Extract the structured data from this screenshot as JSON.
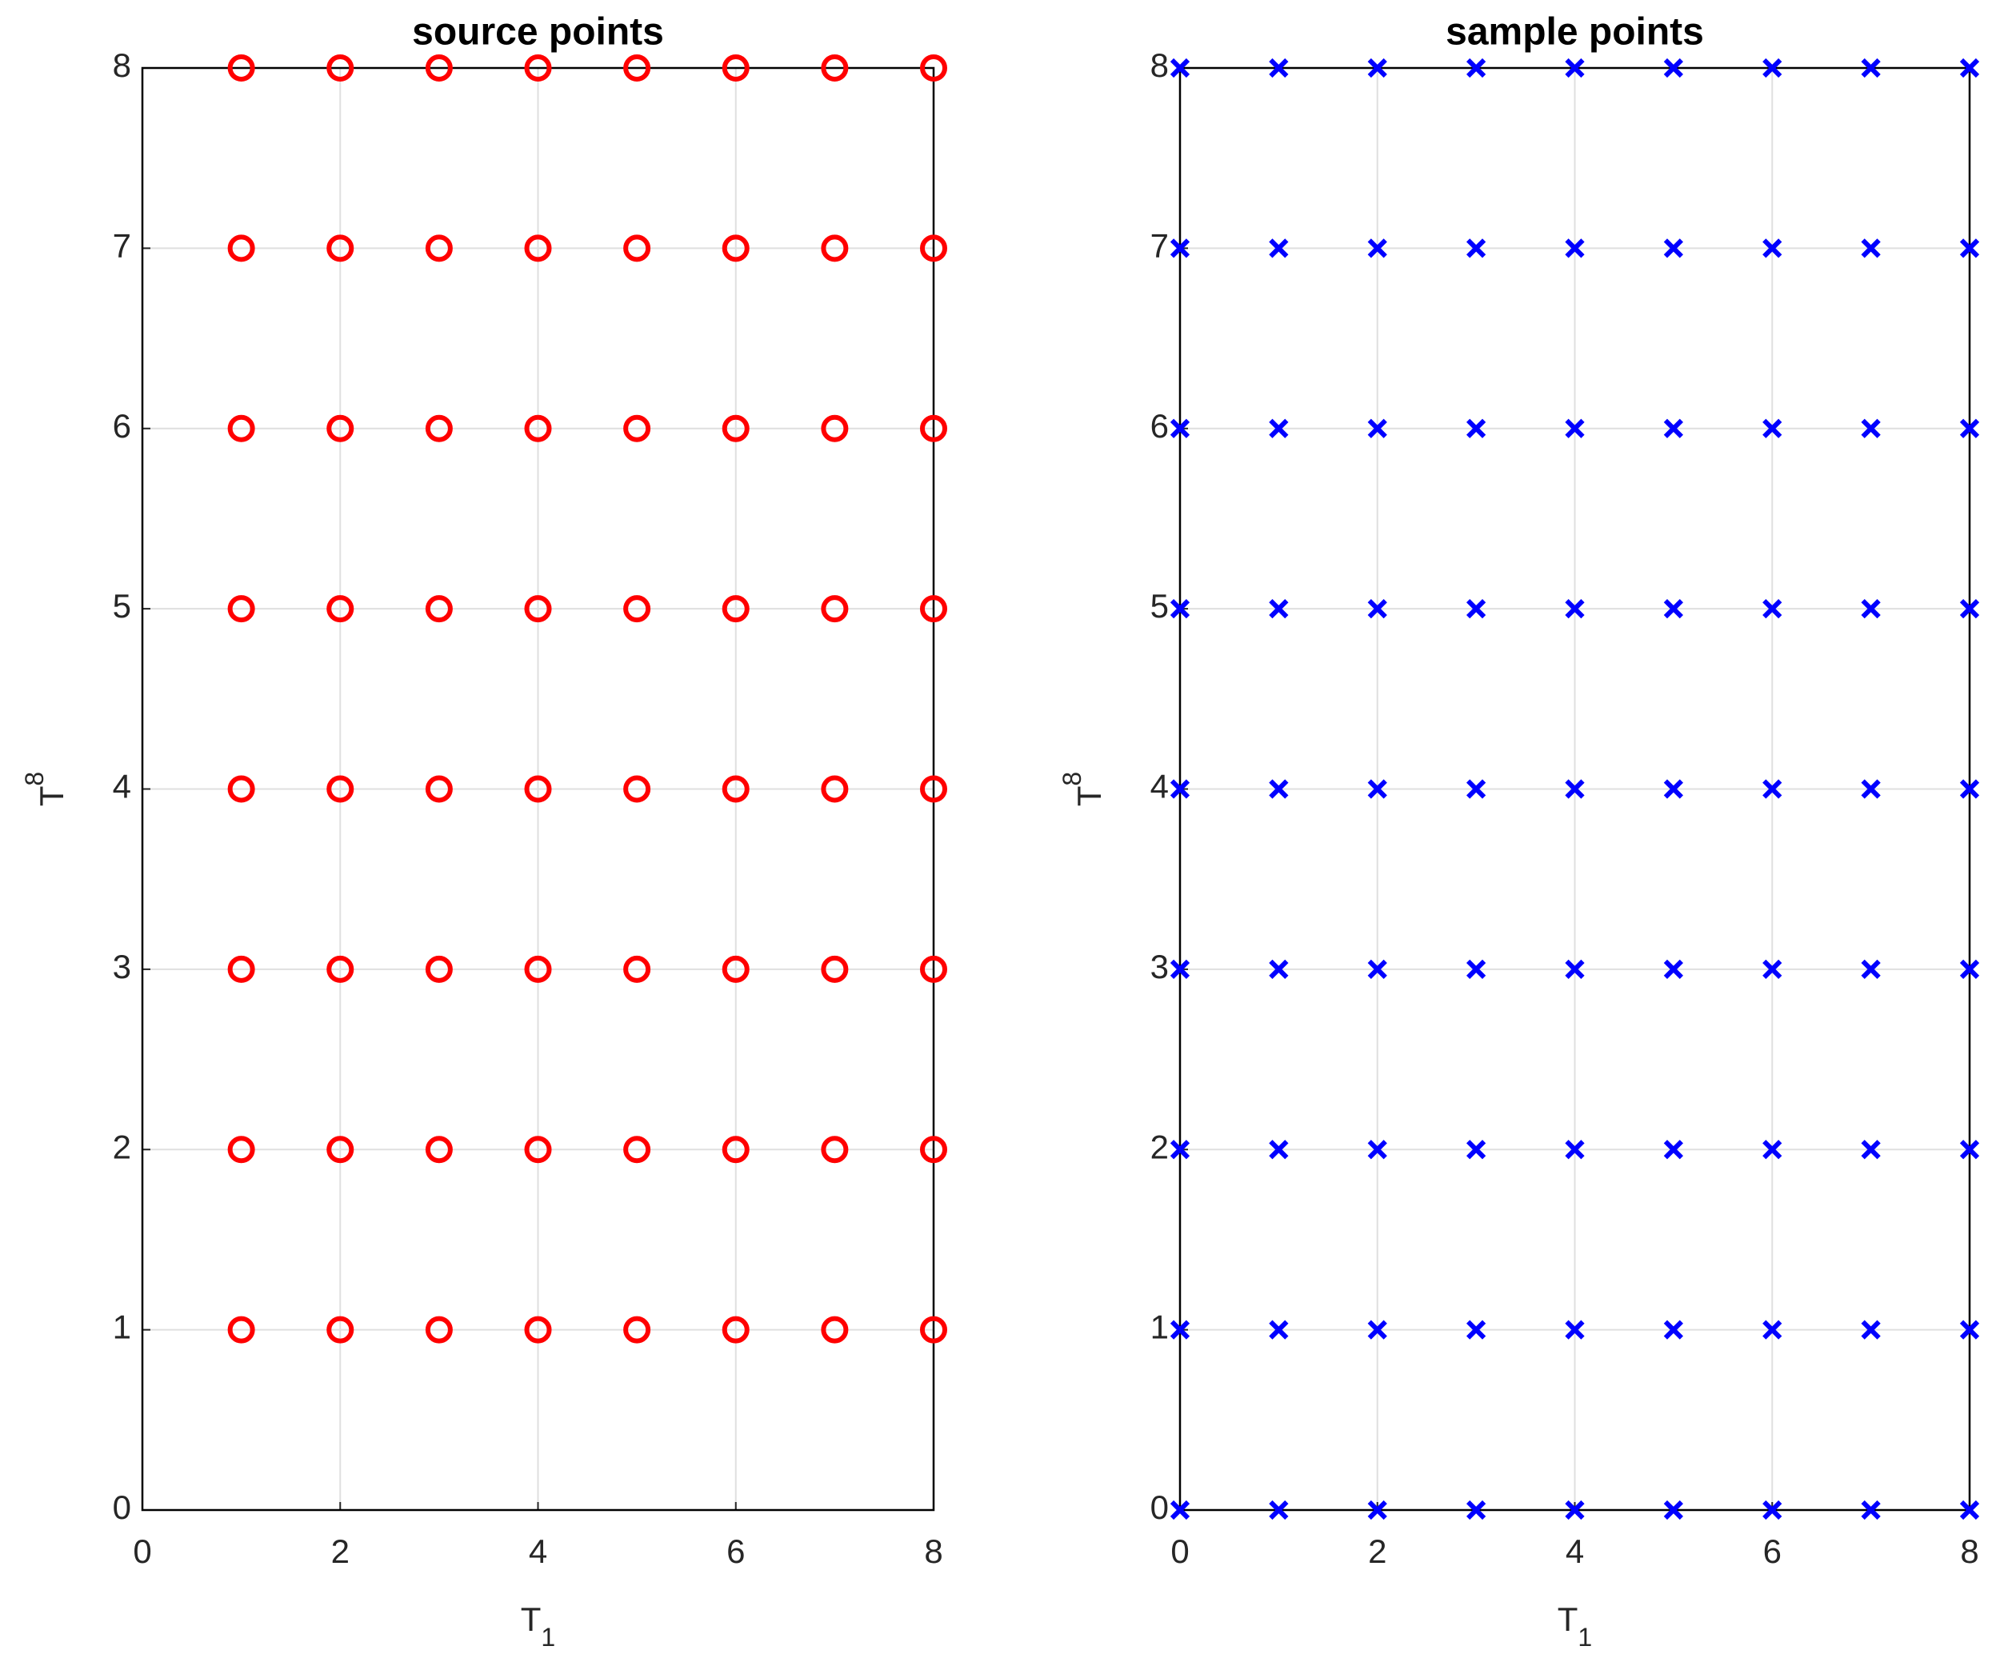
{
  "chart_data": [
    {
      "type": "scatter",
      "title": "source points",
      "xlabel": [
        "T",
        "1"
      ],
      "ylabel": [
        "T",
        "8"
      ],
      "marker": "o",
      "color": "#ff0000",
      "x": [
        1,
        2,
        3,
        4,
        5,
        6,
        7,
        8,
        1,
        2,
        3,
        4,
        5,
        6,
        7,
        8,
        1,
        2,
        3,
        4,
        5,
        6,
        7,
        8,
        1,
        2,
        3,
        4,
        5,
        6,
        7,
        8,
        1,
        2,
        3,
        4,
        5,
        6,
        7,
        8,
        1,
        2,
        3,
        4,
        5,
        6,
        7,
        8,
        1,
        2,
        3,
        4,
        5,
        6,
        7,
        8,
        1,
        2,
        3,
        4,
        5,
        6,
        7,
        8
      ],
      "y": [
        1,
        1,
        1,
        1,
        1,
        1,
        1,
        1,
        2,
        2,
        2,
        2,
        2,
        2,
        2,
        2,
        3,
        3,
        3,
        3,
        3,
        3,
        3,
        3,
        4,
        4,
        4,
        4,
        4,
        4,
        4,
        4,
        5,
        5,
        5,
        5,
        5,
        5,
        5,
        5,
        6,
        6,
        6,
        6,
        6,
        6,
        6,
        6,
        7,
        7,
        7,
        7,
        7,
        7,
        7,
        7,
        8,
        8,
        8,
        8,
        8,
        8,
        8,
        8
      ],
      "xlim": [
        0,
        8
      ],
      "ylim": [
        0,
        8
      ],
      "xticks": [
        0,
        2,
        4,
        6,
        8
      ],
      "yticks": [
        0,
        1,
        2,
        3,
        4,
        5,
        6,
        7,
        8
      ],
      "grid": true
    },
    {
      "type": "scatter",
      "title": "sample points",
      "xlabel": [
        "T",
        "1"
      ],
      "ylabel": [
        "T",
        "8"
      ],
      "marker": "x",
      "color": "#0000ff",
      "x": [
        0,
        1,
        2,
        3,
        4,
        5,
        6,
        7,
        8,
        0,
        1,
        2,
        3,
        4,
        5,
        6,
        7,
        8,
        0,
        1,
        2,
        3,
        4,
        5,
        6,
        7,
        8,
        0,
        1,
        2,
        3,
        4,
        5,
        6,
        7,
        8,
        0,
        1,
        2,
        3,
        4,
        5,
        6,
        7,
        8,
        0,
        1,
        2,
        3,
        4,
        5,
        6,
        7,
        8,
        0,
        1,
        2,
        3,
        4,
        5,
        6,
        7,
        8,
        0,
        1,
        2,
        3,
        4,
        5,
        6,
        7,
        8,
        0,
        1,
        2,
        3,
        4,
        5,
        6,
        7,
        8
      ],
      "y": [
        0,
        0,
        0,
        0,
        0,
        0,
        0,
        0,
        0,
        1,
        1,
        1,
        1,
        1,
        1,
        1,
        1,
        1,
        2,
        2,
        2,
        2,
        2,
        2,
        2,
        2,
        2,
        3,
        3,
        3,
        3,
        3,
        3,
        3,
        3,
        3,
        4,
        4,
        4,
        4,
        4,
        4,
        4,
        4,
        4,
        5,
        5,
        5,
        5,
        5,
        5,
        5,
        5,
        5,
        6,
        6,
        6,
        6,
        6,
        6,
        6,
        6,
        6,
        7,
        7,
        7,
        7,
        7,
        7,
        7,
        7,
        7,
        8,
        8,
        8,
        8,
        8,
        8,
        8,
        8,
        8
      ],
      "xlim": [
        0,
        8
      ],
      "ylim": [
        0,
        8
      ],
      "xticks": [
        0,
        2,
        4,
        6,
        8
      ],
      "yticks": [
        0,
        1,
        2,
        3,
        4,
        5,
        6,
        7,
        8
      ],
      "grid": true
    }
  ]
}
